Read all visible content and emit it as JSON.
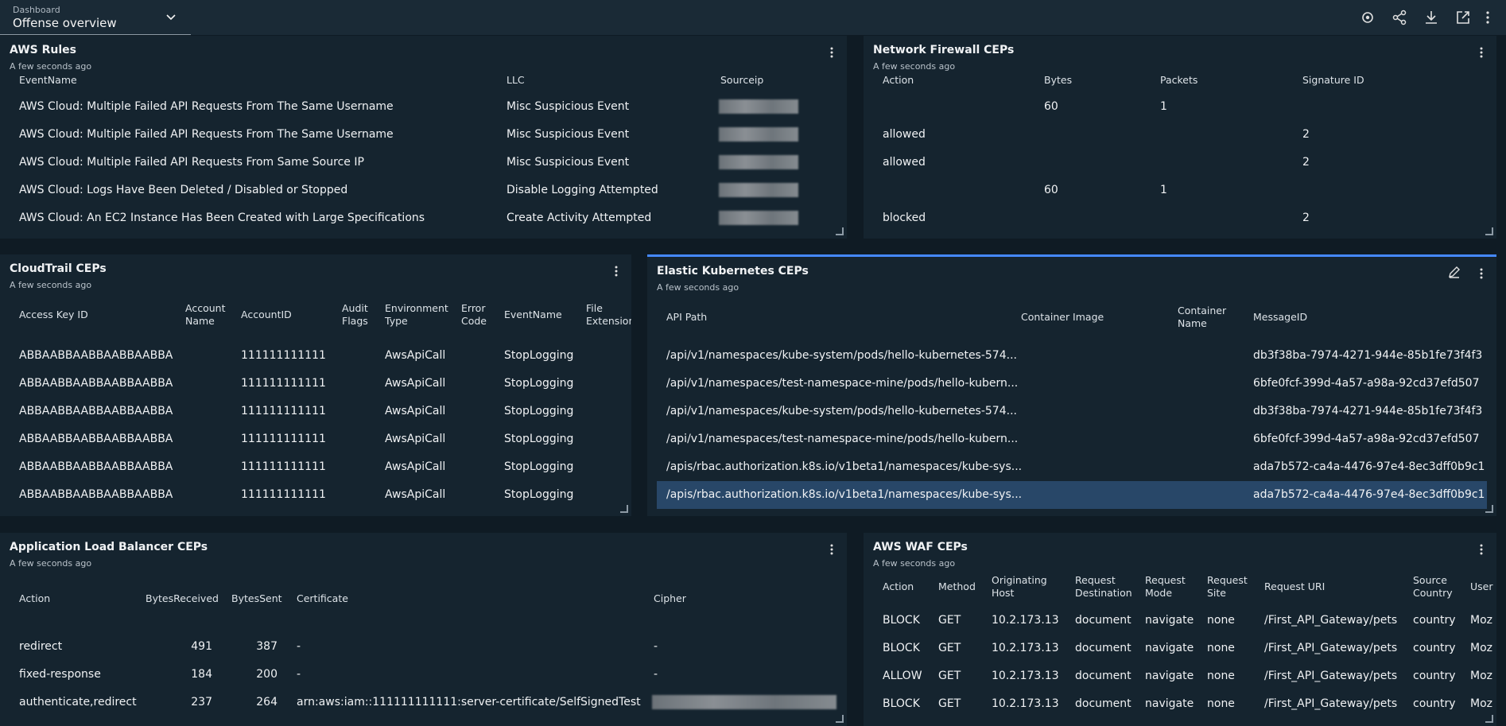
{
  "top_bar": {
    "label": "Dashboard",
    "dashboard": "Offense overview"
  },
  "panels": [
    {
      "title": "AWS Rules",
      "subtitle": "A few seconds ago",
      "columns": [
        "EventName",
        "LLC",
        "Sourceip"
      ],
      "rows": [
        [
          "AWS Cloud: Multiple Failed API Requests From The Same Username",
          "Misc Suspicious Event",
          null
        ],
        [
          "AWS Cloud: Multiple Failed API Requests From The Same Username",
          "Misc Suspicious Event",
          null
        ],
        [
          "AWS Cloud: Multiple Failed API Requests From Same Source IP",
          "Misc Suspicious Event",
          null
        ],
        [
          "AWS Cloud: Logs Have Been Deleted / Disabled or Stopped",
          "Disable Logging Attempted",
          null
        ],
        [
          "AWS Cloud: An EC2 Instance Has Been Created with Large Specifications",
          "Create Activity Attempted",
          null
        ]
      ]
    },
    {
      "title": "Network Firewall CEPs",
      "subtitle": "A few seconds ago",
      "columns": [
        "Action",
        "Bytes",
        "Packets",
        "Signature ID"
      ],
      "rows": [
        [
          null,
          60,
          1,
          null
        ],
        [
          "allowed",
          null,
          null,
          2
        ],
        [
          "allowed",
          null,
          null,
          2
        ],
        [
          null,
          60,
          1,
          null
        ],
        [
          "blocked",
          null,
          null,
          2
        ]
      ]
    },
    {
      "title": "CloudTrail CEPs",
      "subtitle": "A few seconds ago",
      "columns": [
        "Access Key ID",
        "Account Name",
        "AccountID",
        "Audit Flags",
        "Environment Type",
        "Error Code",
        "EventName",
        "File Extension"
      ],
      "rows": [
        [
          "ABBAABBAABBAABBAABBA",
          null,
          "111111111111",
          null,
          "AwsApiCall",
          null,
          "StopLogging",
          null
        ],
        [
          "ABBAABBAABBAABBAABBA",
          null,
          "111111111111",
          null,
          "AwsApiCall",
          null,
          "StopLogging",
          null
        ],
        [
          "ABBAABBAABBAABBAABBA",
          null,
          "111111111111",
          null,
          "AwsApiCall",
          null,
          "StopLogging",
          null
        ],
        [
          "ABBAABBAABBAABBAABBA",
          null,
          "111111111111",
          null,
          "AwsApiCall",
          null,
          "StopLogging",
          null
        ],
        [
          "ABBAABBAABBAABBAABBA",
          null,
          "111111111111",
          null,
          "AwsApiCall",
          null,
          "StopLogging",
          null
        ],
        [
          "ABBAABBAABBAABBAABBA",
          null,
          "111111111111",
          null,
          "AwsApiCall",
          null,
          "StopLogging",
          null
        ]
      ]
    },
    {
      "title": "Elastic Kubernetes CEPs",
      "subtitle": "A few seconds ago",
      "columns": [
        "API Path",
        "Container Image",
        "Container Name",
        "MessageID"
      ],
      "rows": [
        [
          "/api/v1/namespaces/kube-system/pods/hello-kubernetes-574...",
          null,
          null,
          "db3f38ba-7974-4271-944e-85b1fe73f4f3"
        ],
        [
          "/api/v1/namespaces/test-namespace-mine/pods/hello-kubern...",
          null,
          null,
          "6bfe0fcf-399d-4a57-a98a-92cd37efd507"
        ],
        [
          "/api/v1/namespaces/kube-system/pods/hello-kubernetes-574...",
          null,
          null,
          "db3f38ba-7974-4271-944e-85b1fe73f4f3"
        ],
        [
          "/api/v1/namespaces/test-namespace-mine/pods/hello-kubern...",
          null,
          null,
          "6bfe0fcf-399d-4a57-a98a-92cd37efd507"
        ],
        [
          "/apis/rbac.authorization.k8s.io/v1beta1/namespaces/kube-sys...",
          null,
          null,
          "ada7b572-ca4a-4476-97e4-8ec3dff0b9c1"
        ],
        [
          "/apis/rbac.authorization.k8s.io/v1beta1/namespaces/kube-sys...",
          null,
          null,
          "ada7b572-ca4a-4476-97e4-8ec3dff0b9c1"
        ]
      ]
    },
    {
      "title": "Application Load Balancer CEPs",
      "subtitle": "A few seconds ago",
      "columns": [
        "Action",
        "BytesReceived",
        "BytesSent",
        "Certificate",
        "Cipher"
      ],
      "rows": [
        [
          "redirect",
          491,
          387,
          "-",
          "-"
        ],
        [
          "fixed-response",
          184,
          200,
          "-",
          "-"
        ],
        [
          "authenticate,redirect",
          237,
          264,
          "arn:aws:iam::111111111111:server-certificate/SelfSignedTest",
          null
        ]
      ]
    },
    {
      "title": "AWS WAF CEPs",
      "subtitle": "A few seconds ago",
      "columns": [
        "Action",
        "Method",
        "Originating Host",
        "Request Destination",
        "Request Mode",
        "Request Site",
        "Request URI",
        "Source Country",
        "User"
      ],
      "rows": [
        [
          "BLOCK",
          "GET",
          "10.2.173.13",
          "document",
          "navigate",
          "none",
          "/First_API_Gateway/pets",
          "country",
          "Moz"
        ],
        [
          "BLOCK",
          "GET",
          "10.2.173.13",
          "document",
          "navigate",
          "none",
          "/First_API_Gateway/pets",
          "country",
          "Moz"
        ],
        [
          "ALLOW",
          "GET",
          "10.2.173.13",
          "document",
          "navigate",
          "none",
          "/First_API_Gateway/pets",
          "country",
          "Moz"
        ],
        [
          "BLOCK",
          "GET",
          "10.2.173.13",
          "document",
          "navigate",
          "none",
          "/First_API_Gateway/pets",
          "country",
          "Moz"
        ]
      ]
    }
  ]
}
